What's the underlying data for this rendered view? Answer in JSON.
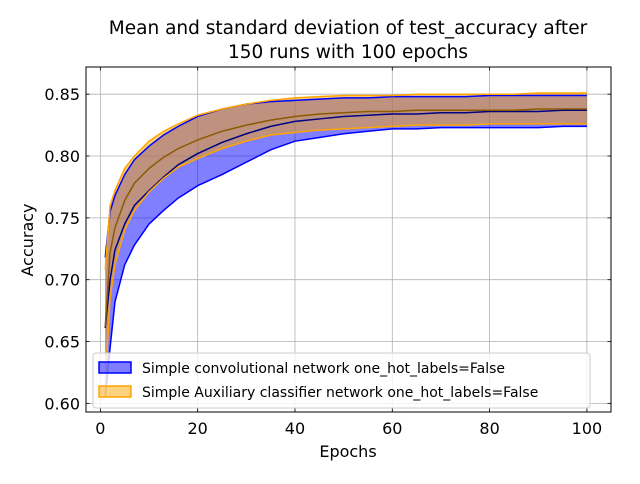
{
  "chart_data": {
    "type": "line",
    "title_lines": [
      "Mean and standard deviation of test_accuracy after",
      "150 runs with 100 epochs"
    ],
    "xlabel": "Epochs",
    "ylabel": "Accuracy",
    "xlim": [
      -2.95,
      104.95
    ],
    "ylim": [
      0.593,
      0.872
    ],
    "xticks": [
      0,
      20,
      40,
      60,
      80,
      100
    ],
    "yticks": [
      0.6,
      0.65,
      0.7,
      0.75,
      0.8,
      0.85
    ],
    "xtick_labels": [
      "0",
      "20",
      "40",
      "60",
      "80",
      "100"
    ],
    "ytick_labels": [
      "0.60",
      "0.65",
      "0.70",
      "0.75",
      "0.80",
      "0.85"
    ],
    "grid": true,
    "legend_position": "lower-left",
    "series": [
      {
        "name": "Simple convolutional network one_hot_labels=False",
        "color": "#0000ff",
        "mean_color": "#000080",
        "x": [
          1,
          2,
          3,
          5,
          7,
          10,
          13,
          16,
          20,
          25,
          30,
          35,
          40,
          45,
          50,
          55,
          60,
          65,
          70,
          75,
          80,
          85,
          90,
          95,
          100
        ],
        "mean": [
          0.661,
          0.7,
          0.724,
          0.745,
          0.76,
          0.772,
          0.783,
          0.793,
          0.802,
          0.811,
          0.818,
          0.824,
          0.828,
          0.83,
          0.832,
          0.833,
          0.834,
          0.834,
          0.835,
          0.835,
          0.836,
          0.836,
          0.836,
          0.837,
          0.837
        ],
        "lower": [
          0.605,
          0.645,
          0.682,
          0.712,
          0.728,
          0.745,
          0.756,
          0.766,
          0.776,
          0.785,
          0.795,
          0.805,
          0.812,
          0.815,
          0.818,
          0.82,
          0.822,
          0.822,
          0.823,
          0.823,
          0.823,
          0.823,
          0.823,
          0.824,
          0.824
        ],
        "upper": [
          0.718,
          0.755,
          0.768,
          0.785,
          0.797,
          0.808,
          0.817,
          0.824,
          0.832,
          0.838,
          0.842,
          0.844,
          0.845,
          0.846,
          0.847,
          0.847,
          0.848,
          0.848,
          0.848,
          0.848,
          0.849,
          0.849,
          0.849,
          0.849,
          0.849
        ]
      },
      {
        "name": "Simple Auxiliary classifier network one_hot_labels=False",
        "color": "#ffa500",
        "mean_color": "#8b5a00",
        "x": [
          1,
          2,
          3,
          5,
          7,
          10,
          13,
          16,
          20,
          25,
          30,
          35,
          40,
          45,
          50,
          55,
          60,
          65,
          70,
          75,
          80,
          85,
          90,
          95,
          100
        ],
        "mean": [
          0.662,
          0.722,
          0.742,
          0.764,
          0.778,
          0.79,
          0.799,
          0.806,
          0.813,
          0.82,
          0.825,
          0.829,
          0.832,
          0.834,
          0.835,
          0.836,
          0.836,
          0.837,
          0.837,
          0.837,
          0.837,
          0.837,
          0.838,
          0.838,
          0.838
        ],
        "lower": [
          0.615,
          0.685,
          0.712,
          0.74,
          0.756,
          0.771,
          0.782,
          0.791,
          0.798,
          0.806,
          0.812,
          0.817,
          0.819,
          0.821,
          0.822,
          0.823,
          0.824,
          0.825,
          0.825,
          0.825,
          0.826,
          0.826,
          0.826,
          0.826,
          0.826
        ],
        "upper": [
          0.708,
          0.76,
          0.772,
          0.79,
          0.8,
          0.812,
          0.82,
          0.826,
          0.833,
          0.838,
          0.842,
          0.845,
          0.847,
          0.848,
          0.849,
          0.849,
          0.849,
          0.85,
          0.85,
          0.85,
          0.85,
          0.85,
          0.851,
          0.851,
          0.851
        ]
      }
    ]
  }
}
